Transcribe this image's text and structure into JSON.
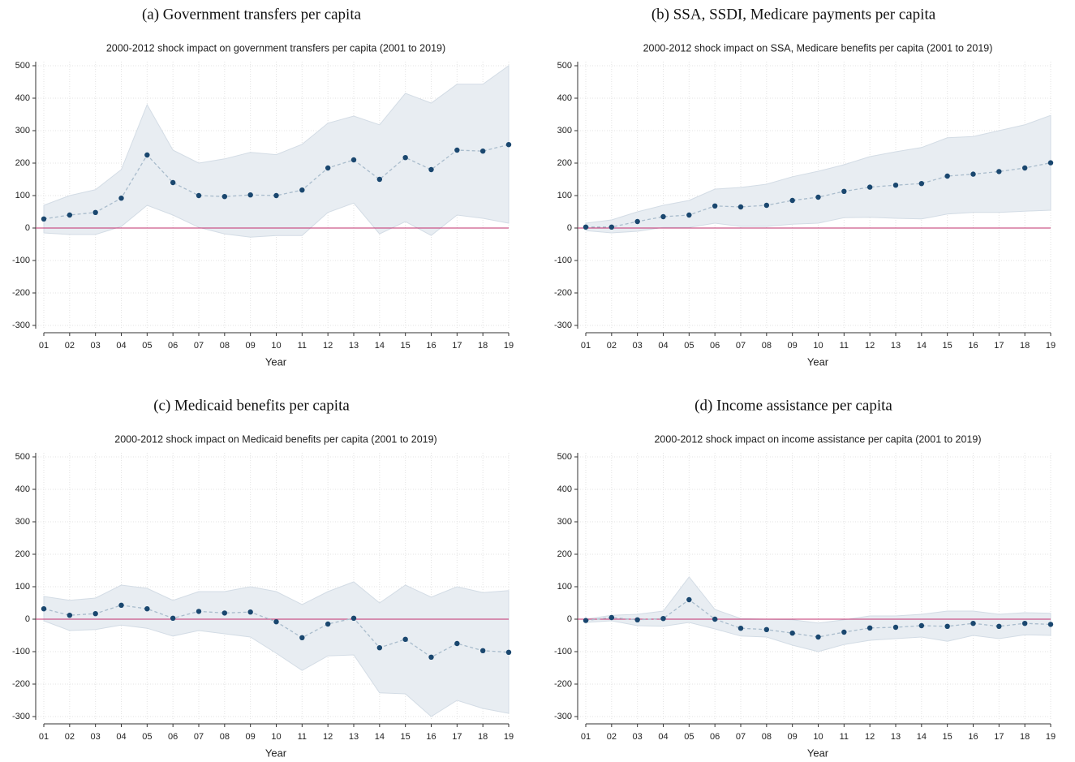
{
  "chart_data": [
    {
      "type": "line",
      "caption": "(a) Government transfers per capita",
      "title": "2000-2012 shock impact on government transfers per capita (2001 to 2019)",
      "xlabel": "Year",
      "categories": [
        "01",
        "02",
        "03",
        "04",
        "05",
        "06",
        "07",
        "08",
        "09",
        "10",
        "11",
        "12",
        "13",
        "14",
        "15",
        "16",
        "17",
        "18",
        "19"
      ],
      "values": [
        28,
        40,
        48,
        92,
        225,
        140,
        100,
        97,
        102,
        100,
        117,
        185,
        210,
        150,
        217,
        180,
        240,
        237,
        257
      ],
      "ci_upper": [
        70,
        100,
        118,
        180,
        380,
        240,
        200,
        213,
        233,
        226,
        258,
        323,
        345,
        318,
        415,
        385,
        443,
        443,
        500
      ],
      "ci_lower": [
        -15,
        -20,
        -20,
        5,
        70,
        40,
        2,
        -18,
        -28,
        -23,
        -23,
        48,
        77,
        -18,
        20,
        -23,
        40,
        30,
        15
      ],
      "ylim": [
        -300,
        500
      ],
      "yticks": [
        -300,
        -200,
        -100,
        0,
        100,
        200,
        300,
        400,
        500
      ],
      "refline": 0,
      "color": "#1a476f",
      "line_color": "#a9bccc",
      "band_color": "#e8edf2",
      "ref_color": "#c2306e",
      "grid": true
    },
    {
      "type": "line",
      "caption": "(b) SSA, SSDI, Medicare payments per capita",
      "title": "2000-2012 shock impact on SSA, Medicare benefits per capita (2001 to 2019)",
      "xlabel": "Year",
      "categories": [
        "01",
        "02",
        "03",
        "04",
        "05",
        "06",
        "07",
        "08",
        "09",
        "10",
        "11",
        "12",
        "13",
        "14",
        "15",
        "16",
        "17",
        "18",
        "19"
      ],
      "values": [
        3,
        3,
        20,
        35,
        40,
        68,
        65,
        70,
        85,
        95,
        113,
        126,
        132,
        137,
        160,
        166,
        174,
        185,
        201
      ],
      "ci_upper": [
        15,
        25,
        50,
        70,
        85,
        120,
        125,
        135,
        158,
        175,
        195,
        220,
        235,
        248,
        278,
        282,
        300,
        318,
        347
      ],
      "ci_lower": [
        -8,
        -15,
        -10,
        2,
        2,
        15,
        5,
        5,
        12,
        15,
        32,
        33,
        30,
        28,
        43,
        48,
        48,
        52,
        55
      ],
      "ylim": [
        -300,
        500
      ],
      "yticks": [
        -300,
        -200,
        -100,
        0,
        100,
        200,
        300,
        400,
        500
      ],
      "refline": 0,
      "color": "#1a476f",
      "line_color": "#a9bccc",
      "band_color": "#e8edf2",
      "ref_color": "#c2306e",
      "grid": true
    },
    {
      "type": "line",
      "caption": "(c) Medicaid benefits per capita",
      "title": "2000-2012 shock impact on Medicaid benefits per capita (2001 to 2019)",
      "xlabel": "Year",
      "categories": [
        "01",
        "02",
        "03",
        "04",
        "05",
        "06",
        "07",
        "08",
        "09",
        "10",
        "11",
        "12",
        "13",
        "14",
        "15",
        "16",
        "17",
        "18",
        "19"
      ],
      "values": [
        32,
        12,
        17,
        43,
        32,
        3,
        24,
        19,
        22,
        -8,
        -57,
        -15,
        3,
        -88,
        -62,
        -117,
        -75,
        -97,
        -102
      ],
      "ci_upper": [
        70,
        58,
        65,
        105,
        95,
        58,
        85,
        85,
        100,
        85,
        45,
        85,
        115,
        50,
        105,
        68,
        100,
        82,
        88
      ],
      "ci_lower": [
        -5,
        -35,
        -32,
        -18,
        -28,
        -52,
        -35,
        -45,
        -55,
        -105,
        -158,
        -113,
        -110,
        -227,
        -230,
        -300,
        -250,
        -275,
        -290
      ],
      "ylim": [
        -300,
        500
      ],
      "yticks": [
        -300,
        -200,
        -100,
        0,
        100,
        200,
        300,
        400,
        500
      ],
      "refline": 0,
      "color": "#1a476f",
      "line_color": "#a9bccc",
      "band_color": "#e8edf2",
      "ref_color": "#c2306e",
      "grid": true
    },
    {
      "type": "line",
      "caption": "(d) Income assistance per capita",
      "title": "2000-2012 shock impact on income assistance per capita (2001 to 2019)",
      "xlabel": "Year",
      "categories": [
        "01",
        "02",
        "03",
        "04",
        "05",
        "06",
        "07",
        "08",
        "09",
        "10",
        "11",
        "12",
        "13",
        "14",
        "15",
        "16",
        "17",
        "18",
        "19"
      ],
      "values": [
        -4,
        5,
        -2,
        2,
        60,
        0,
        -28,
        -32,
        -43,
        -55,
        -40,
        -27,
        -25,
        -20,
        -22,
        -13,
        -22,
        -13,
        -16
      ],
      "ci_upper": [
        0,
        12,
        15,
        25,
        130,
        30,
        2,
        0,
        -2,
        -12,
        -2,
        10,
        10,
        15,
        25,
        25,
        15,
        20,
        18
      ],
      "ci_lower": [
        -10,
        -5,
        -20,
        -22,
        -10,
        -30,
        -52,
        -55,
        -80,
        -100,
        -78,
        -65,
        -60,
        -55,
        -68,
        -50,
        -60,
        -48,
        -50
      ],
      "ylim": [
        -300,
        500
      ],
      "yticks": [
        -300,
        -200,
        -100,
        0,
        100,
        200,
        300,
        400,
        500
      ],
      "refline": 0,
      "color": "#1a476f",
      "line_color": "#a9bccc",
      "band_color": "#e8edf2",
      "ref_color": "#c2306e",
      "grid": true
    }
  ]
}
